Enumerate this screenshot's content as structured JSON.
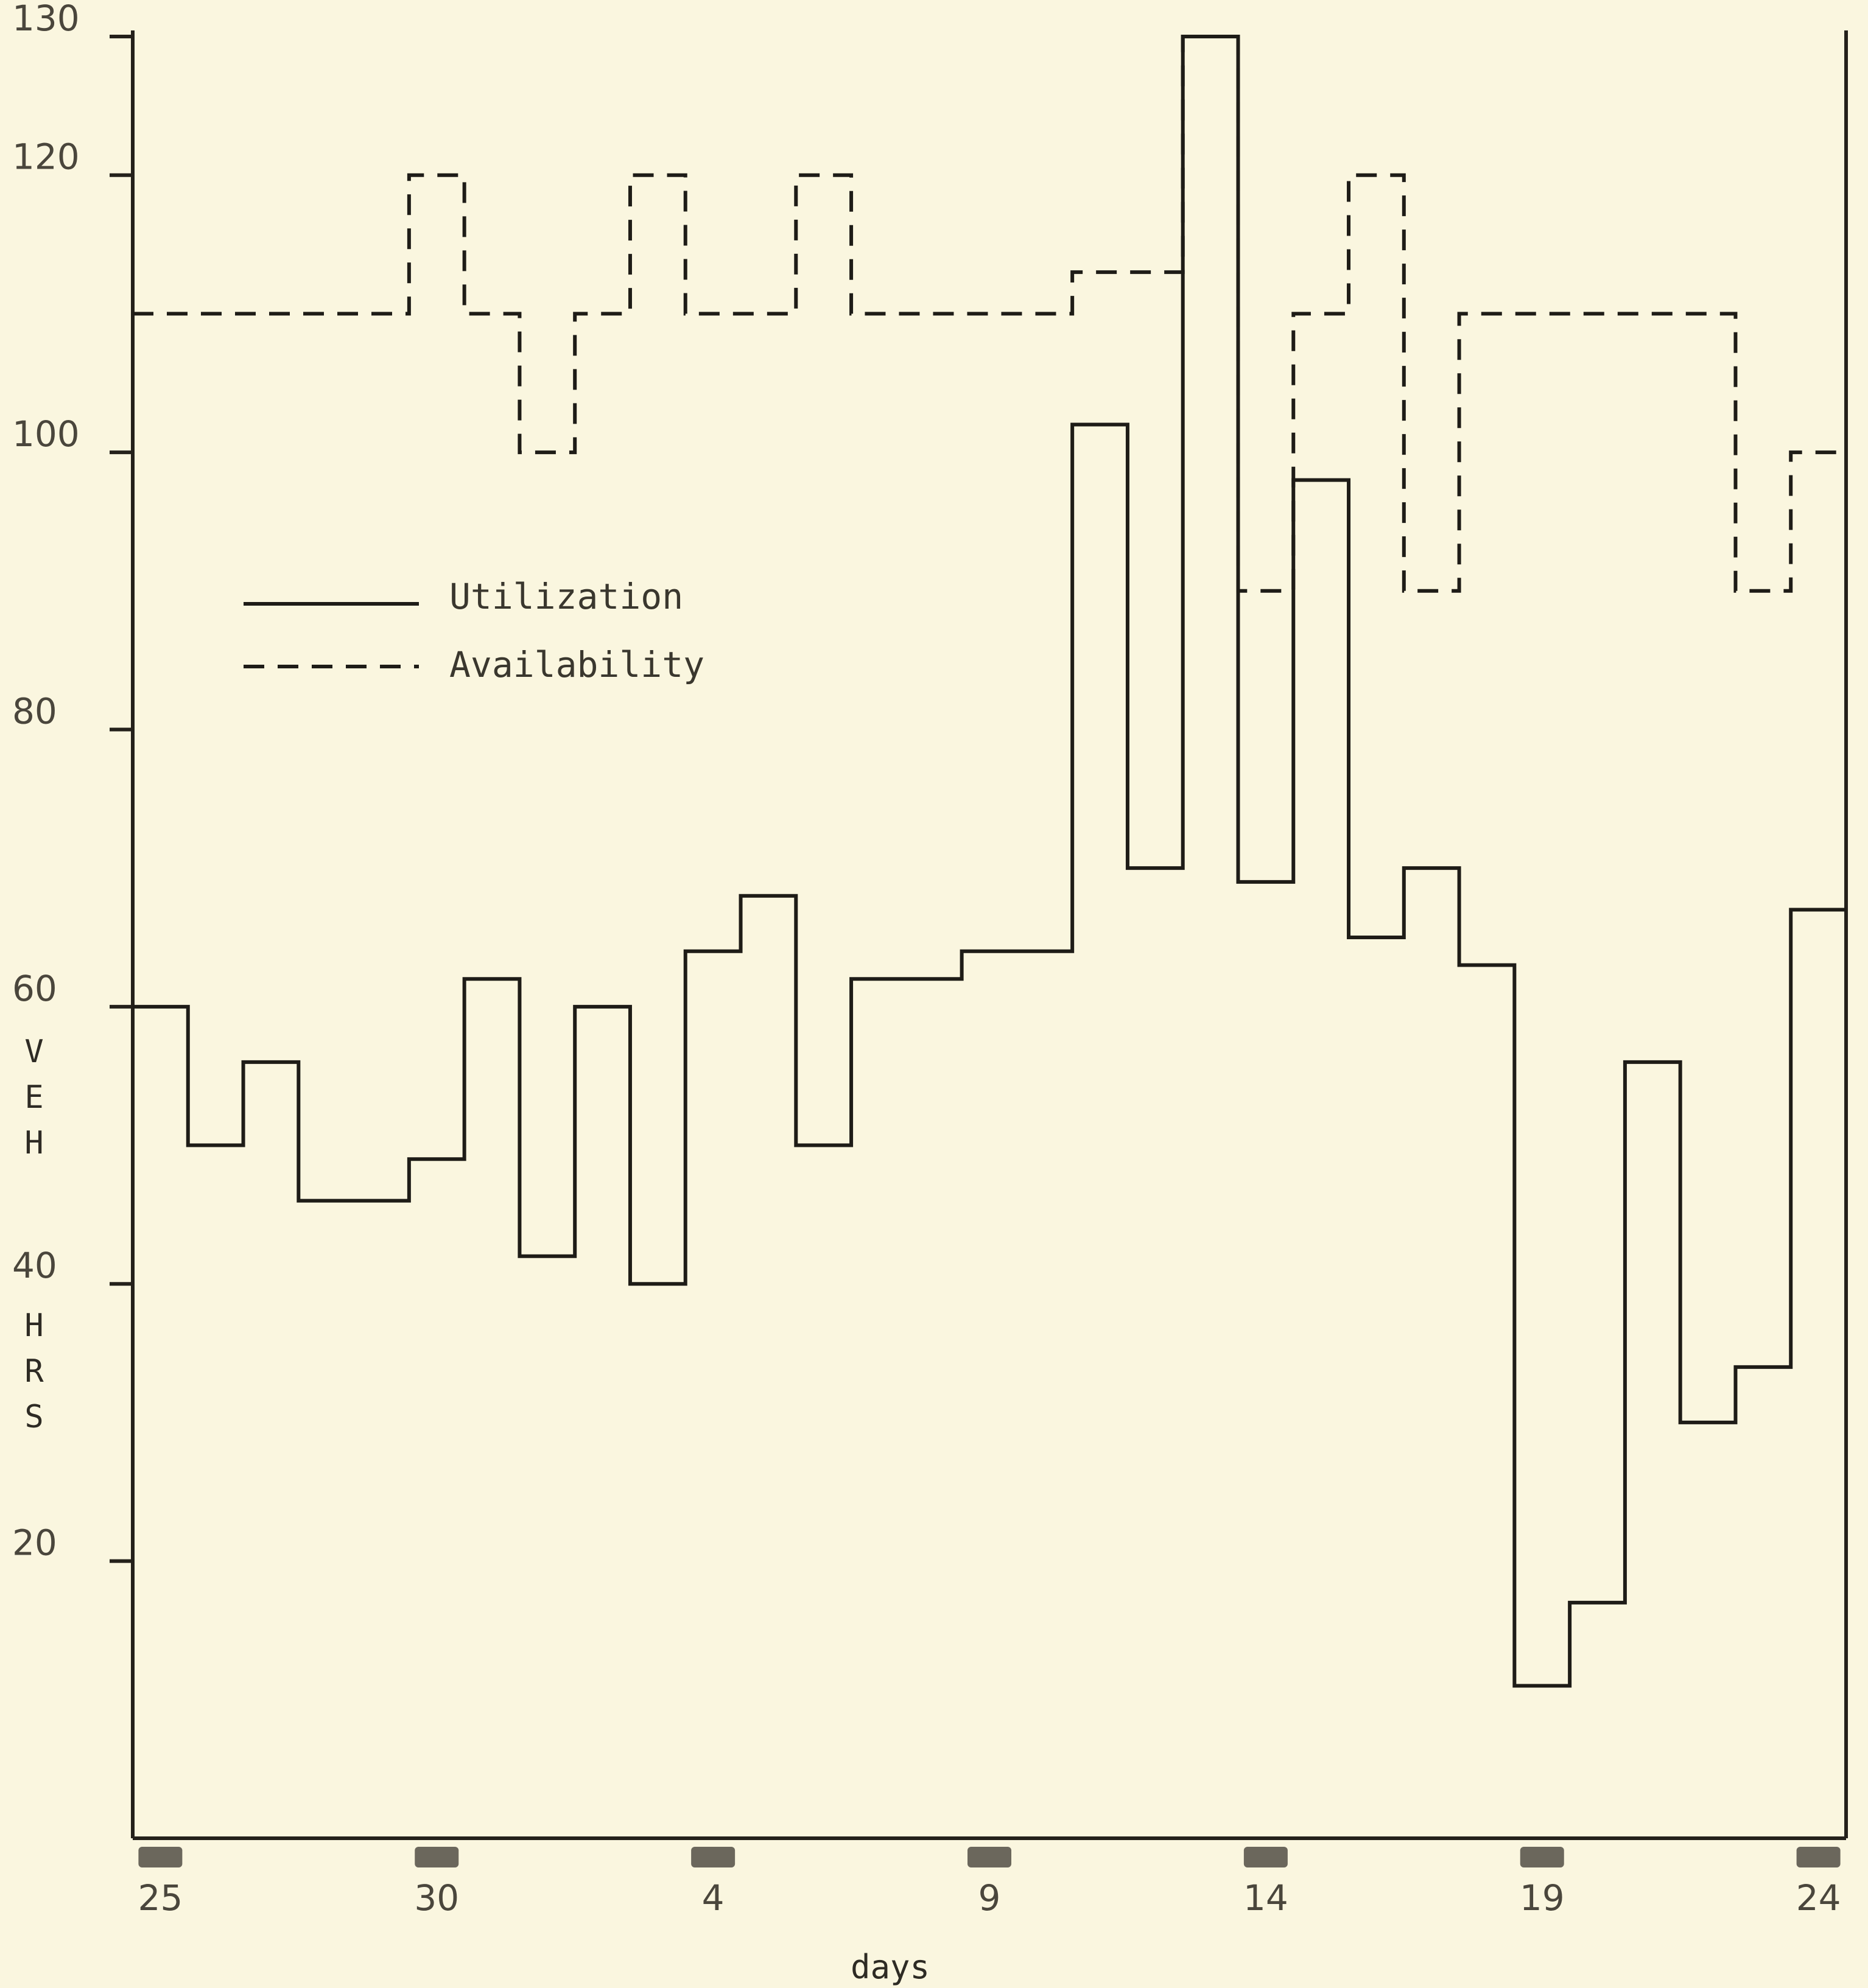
{
  "chart_data": {
    "type": "line",
    "step": true,
    "xlabel": "days",
    "ylabel": [
      "V",
      "E",
      "H",
      "H",
      "R",
      "S"
    ],
    "ylim": [
      0,
      130
    ],
    "y_ticks": [
      20,
      40,
      60,
      80,
      100,
      120,
      130
    ],
    "x_tick_labels": [
      {
        "day": 1,
        "label": "25"
      },
      {
        "day": 6,
        "label": "30"
      },
      {
        "day": 11,
        "label": "4"
      },
      {
        "day": 16,
        "label": "9"
      },
      {
        "day": 21,
        "label": "14"
      },
      {
        "day": 26,
        "label": "19"
      },
      {
        "day": 31,
        "label": "24"
      }
    ],
    "grid": false,
    "legend_placement": "upper-left",
    "series": [
      {
        "name": "Utilization",
        "style": "solid",
        "values": [
          60,
          50,
          56,
          46,
          46,
          49,
          62,
          42,
          60,
          40,
          64,
          68,
          50,
          62,
          62,
          64,
          64,
          102,
          70,
          130,
          69,
          98,
          65,
          70,
          63,
          11,
          17,
          56,
          30,
          34,
          67
        ]
      },
      {
        "name": "Availability",
        "style": "dashed",
        "values": [
          110,
          110,
          110,
          110,
          110,
          120,
          110,
          100,
          110,
          120,
          110,
          110,
          120,
          110,
          110,
          110,
          110,
          113,
          113,
          130,
          90,
          110,
          120,
          90,
          110,
          110,
          110,
          110,
          110,
          90,
          100
        ]
      }
    ]
  }
}
